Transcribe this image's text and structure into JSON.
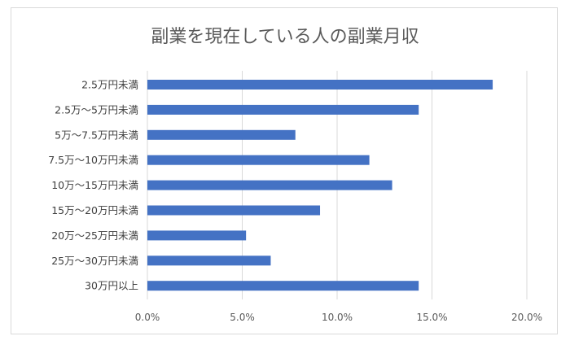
{
  "chart_data": {
    "type": "bar",
    "orientation": "horizontal",
    "title": "副業を現在している人の副業月収",
    "xlabel": "",
    "ylabel": "",
    "categories": [
      "2.5万円未満",
      "2.5万～5万円未満",
      "5万～7.5万円未満",
      "7.5万～10万円未満",
      "10万～15万円未満",
      "15万～20万円未満",
      "20万～25万円未満",
      "25万～30万円未満",
      "30万円以上"
    ],
    "series": [
      {
        "values": [
          18.2,
          14.3,
          7.8,
          11.7,
          12.9,
          9.1,
          5.2,
          6.5,
          14.3
        ]
      }
    ],
    "xlim": [
      0,
      20
    ],
    "x_ticks": [
      "0.0%",
      "5.0%",
      "10.0%",
      "15.0%",
      "20.0%"
    ],
    "x_tick_values": [
      0,
      5,
      10,
      15,
      20
    ],
    "grid": true,
    "legend": "none",
    "colors": {
      "bar": "#4472c4",
      "grid": "#d9d9d9",
      "frame": "#d9d9d9",
      "title": "#595959",
      "label": "#404040"
    }
  }
}
